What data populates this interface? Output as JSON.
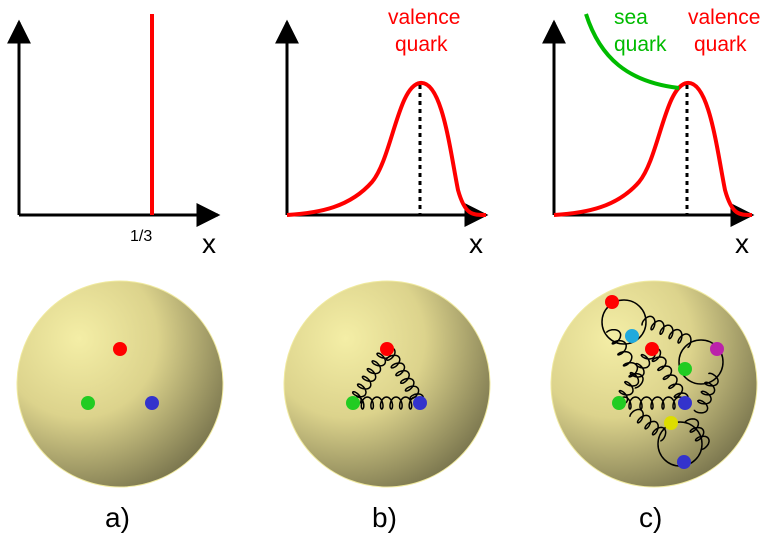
{
  "panels": {
    "a": {
      "label": "a)",
      "axis_label": "x",
      "tick_label": "1/3"
    },
    "b": {
      "label": "b)",
      "axis_label": "x",
      "valence_line1": "valence",
      "valence_line2": "quark"
    },
    "c": {
      "label": "c)",
      "axis_label": "x",
      "sea_line1": "sea",
      "sea_line2": "quark",
      "valence_line1": "valence",
      "valence_line2": "quark"
    }
  },
  "colors": {
    "valence": "#ff0000",
    "sea": "#00bb00",
    "quark_red": "#ff0000",
    "quark_green": "#22cc22",
    "quark_blue": "#3333cc",
    "quark_cyan": "#22aadd",
    "quark_magenta": "#bb22aa",
    "quark_yellow": "#dddd00",
    "sphere_light": "#f2eca2",
    "sphere_dark": "#77724a"
  },
  "icons": {
    "sphere": "nucleon-sphere",
    "gluon": "gluon-spring"
  }
}
